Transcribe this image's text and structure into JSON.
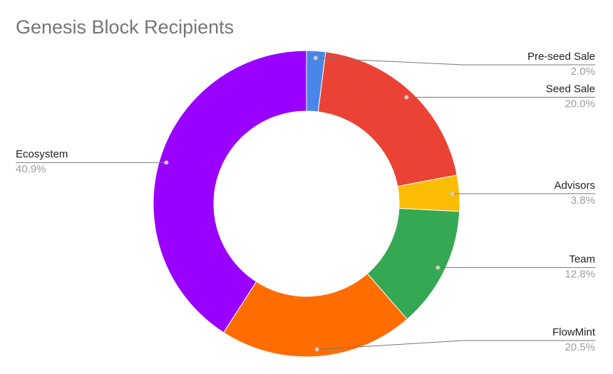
{
  "chart_data": {
    "type": "donut",
    "title": "Genesis Block Recipients",
    "categories": [
      "Pre-seed Sale",
      "Seed Sale",
      "Advisors",
      "Team",
      "FlowMint",
      "Ecosystem"
    ],
    "values": [
      2.0,
      20.0,
      3.8,
      12.8,
      20.5,
      40.9
    ],
    "value_labels": [
      "2.0%",
      "20.0%",
      "3.8%",
      "12.8%",
      "20.5%",
      "40.9%"
    ],
    "colors": [
      "#4a86e8",
      "#ea4335",
      "#fbbc04",
      "#34a853",
      "#ff6d01",
      "#9900ff"
    ]
  }
}
